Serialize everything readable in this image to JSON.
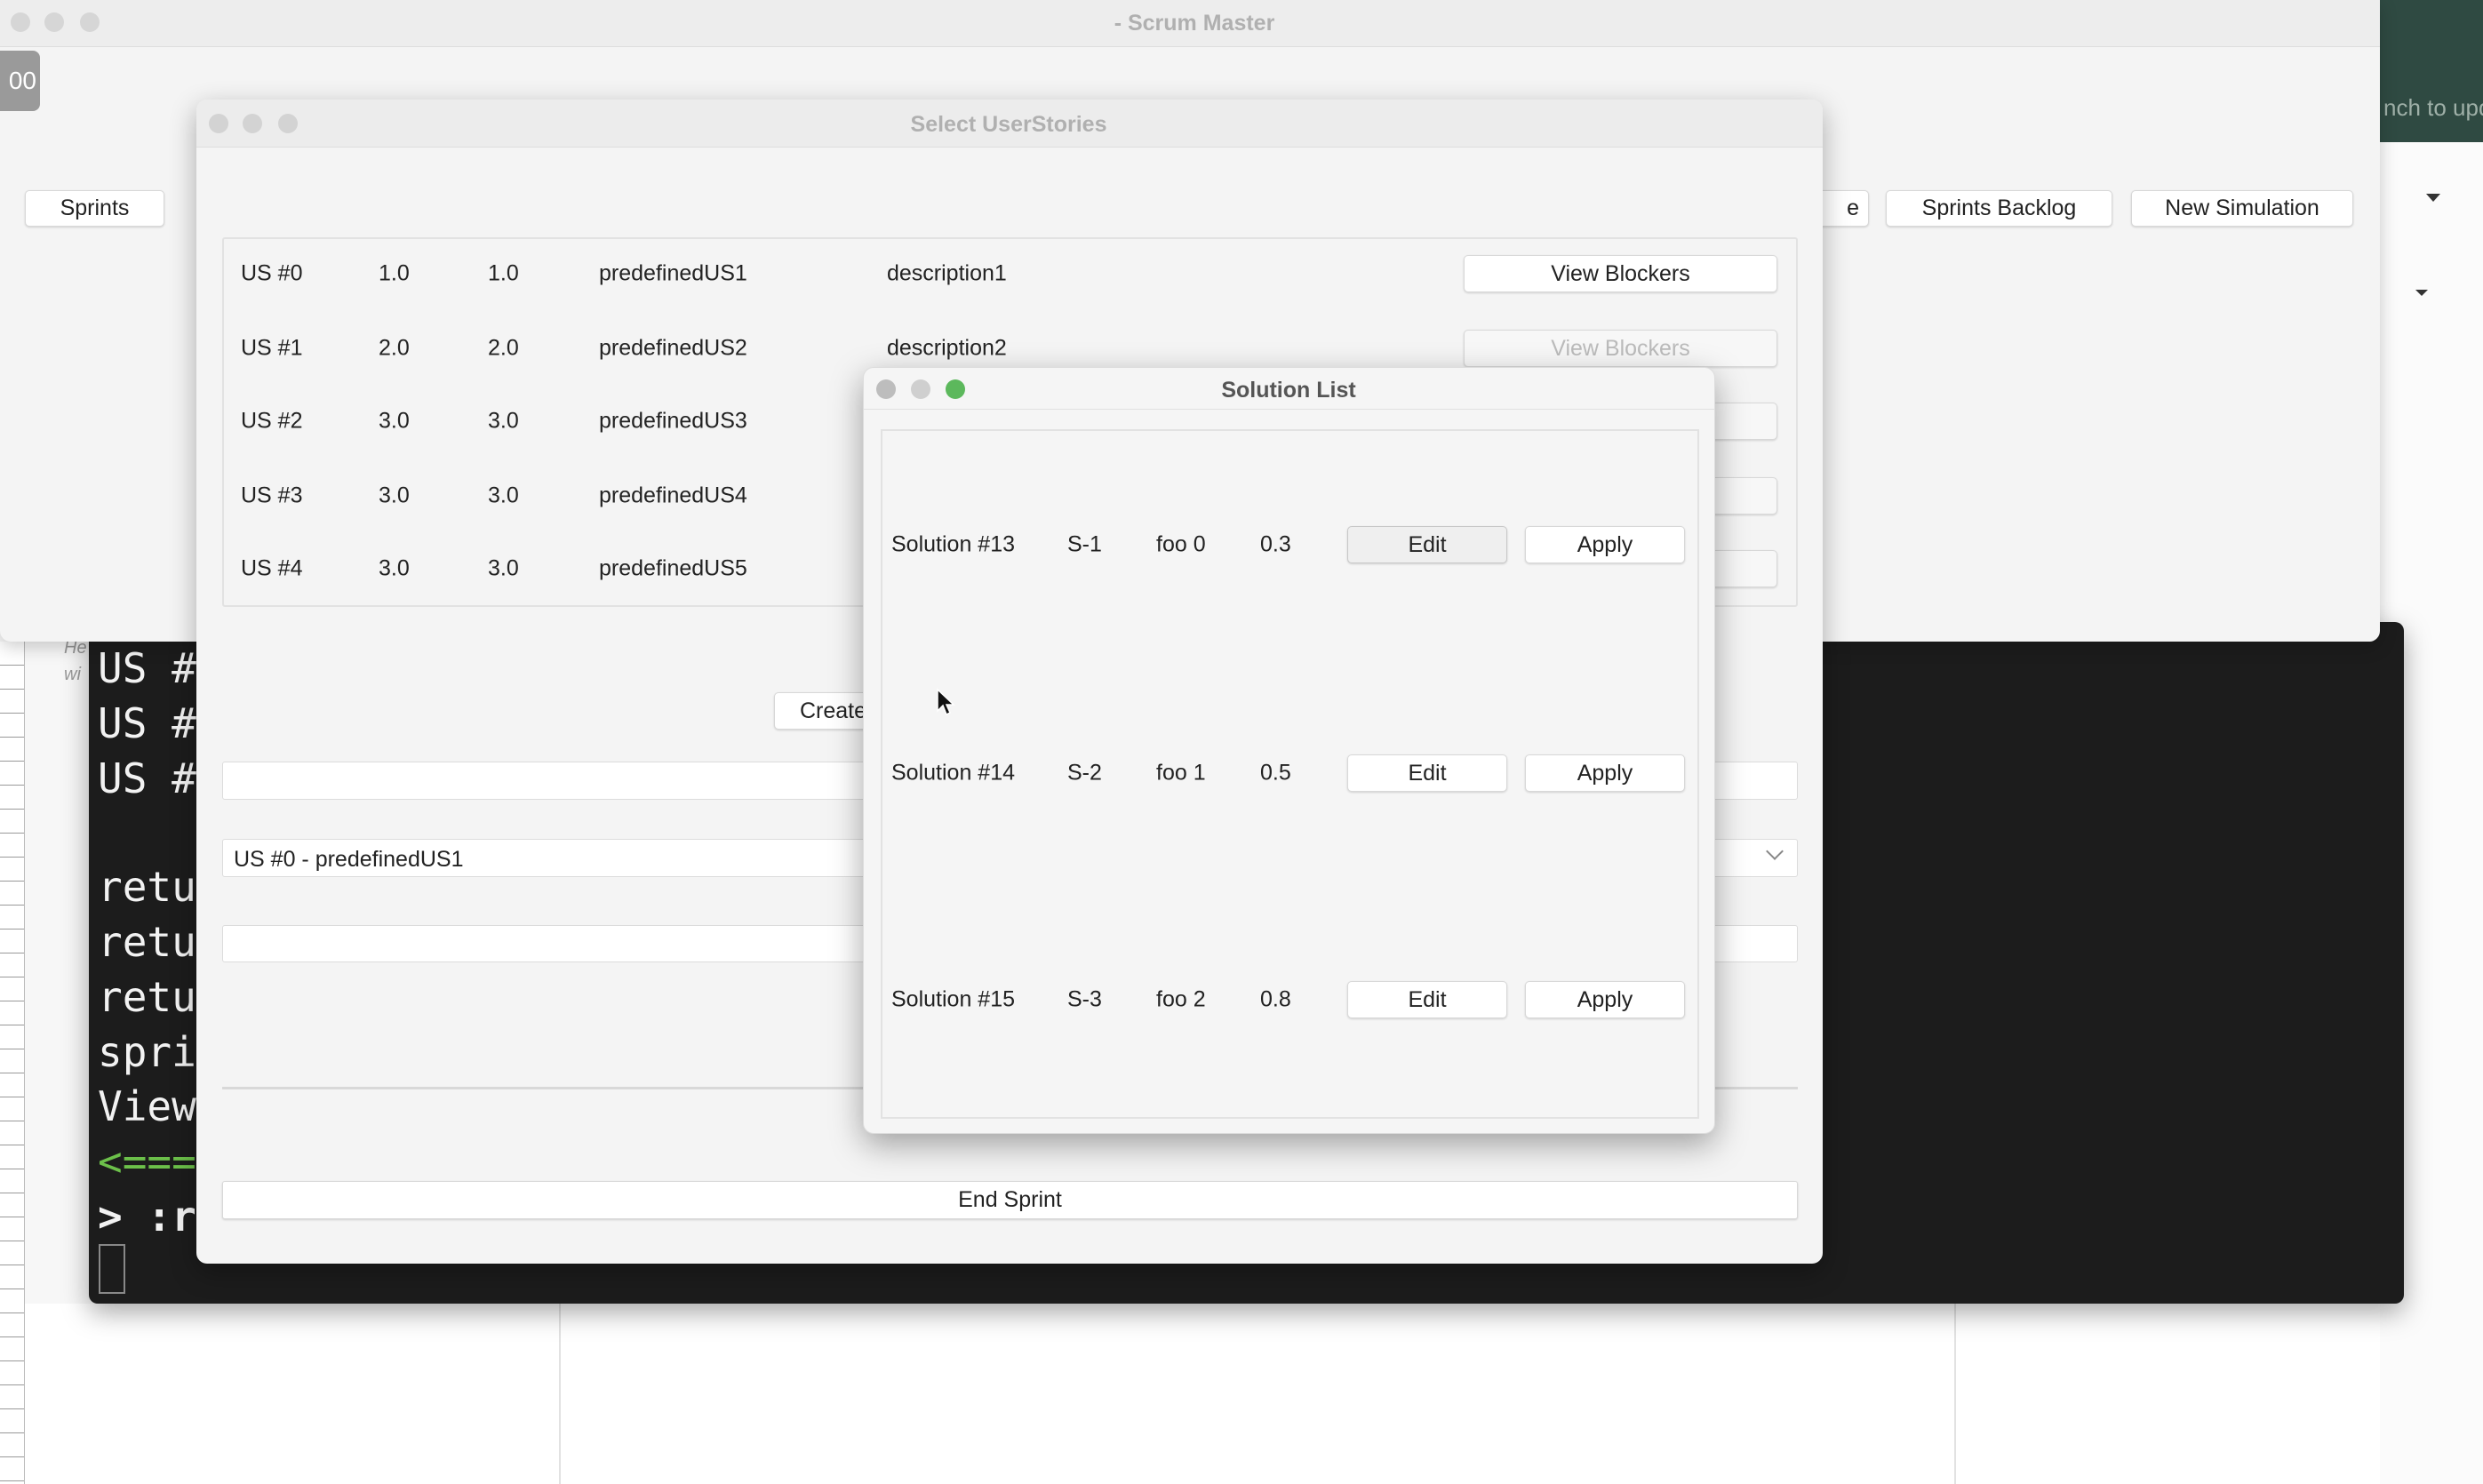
{
  "main_window": {
    "title": "- Scrum Master",
    "badge": "00",
    "toolbar": {
      "sprints": "Sprints",
      "partial": "e",
      "sprints_backlog": "Sprints Backlog",
      "new_simulation": "New Simulation"
    }
  },
  "background": {
    "banner_text": "nch to upd",
    "side_text": [
      "He",
      "wi"
    ],
    "terminal_lines": [
      "US #",
      "US #",
      "US #",
      "retu",
      "retu",
      "retu",
      "spri",
      "View",
      "<===",
      "> :r"
    ]
  },
  "select_userstories": {
    "title": "Select UserStories",
    "rows": [
      {
        "id": "US #0",
        "a": "1.0",
        "b": "1.0",
        "name": "predefinedUS1",
        "desc": "description1",
        "button": "View Blockers"
      },
      {
        "id": "US #1",
        "a": "2.0",
        "b": "2.0",
        "name": "predefinedUS2",
        "desc": "description2",
        "button": "View Blockers"
      },
      {
        "id": "US #2",
        "a": "3.0",
        "b": "3.0",
        "name": "predefinedUS3",
        "desc": "",
        "button": ""
      },
      {
        "id": "US #3",
        "a": "3.0",
        "b": "3.0",
        "name": "predefinedUS4",
        "desc": "",
        "button": ""
      },
      {
        "id": "US #4",
        "a": "3.0",
        "b": "3.0",
        "name": "predefinedUS5",
        "desc": "",
        "button": ""
      }
    ],
    "create_label": "Create",
    "combo_value": "US #0 - predefinedUS1",
    "end_sprint_label": "End Sprint"
  },
  "solution_list": {
    "title": "Solution List",
    "rows": [
      {
        "name": "Solution #13",
        "code": "S-1",
        "label": "foo 0",
        "value": "0.3",
        "edit": "Edit",
        "apply": "Apply"
      },
      {
        "name": "Solution #14",
        "code": "S-2",
        "label": "foo 1",
        "value": "0.5",
        "edit": "Edit",
        "apply": "Apply"
      },
      {
        "name": "Solution #15",
        "code": "S-3",
        "label": "foo 2",
        "value": "0.8",
        "edit": "Edit",
        "apply": "Apply"
      }
    ]
  },
  "colors": {
    "terminal_bg": "#1c1c1c",
    "banner_bg": "#2f4a42",
    "traffic_green": "#5cb85c",
    "prompt_green": "#6cc04a"
  }
}
